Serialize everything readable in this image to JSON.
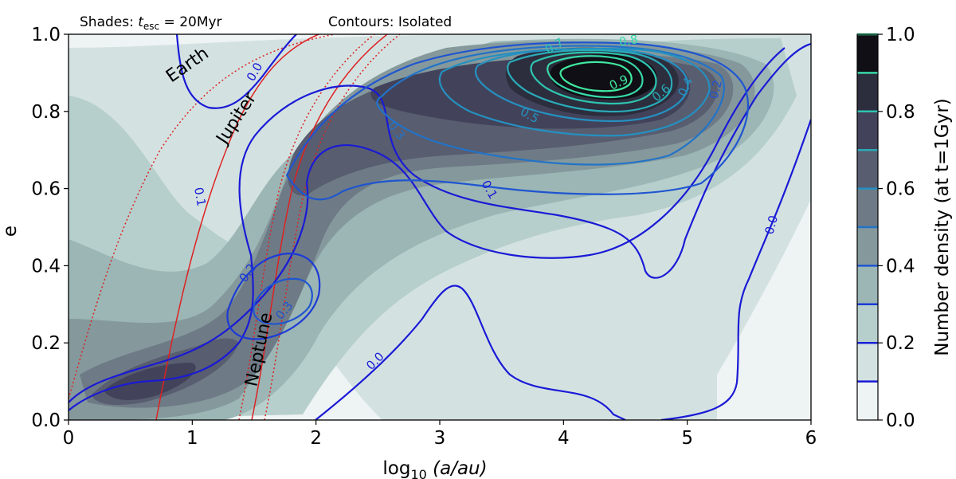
{
  "chart_data": {
    "type": "contour",
    "annotations": {
      "shades": "Shades: ",
      "shades_sym": "t",
      "shades_sub": "esc",
      "shades_val": " = 20Myr",
      "contours": "Contours: Isolated"
    },
    "xlabel": "log",
    "xlabel_sub": "10",
    "xlabel_rest": " (a/au)",
    "ylabel": "e",
    "xlim": [
      0,
      6
    ],
    "ylim": [
      0,
      1
    ],
    "xticks": [
      "0",
      "1",
      "2",
      "3",
      "4",
      "5",
      "6"
    ],
    "yticks": [
      "0.0",
      "0.2",
      "0.4",
      "0.6",
      "0.8",
      "1.0"
    ],
    "colorbar": {
      "label": "Number density (at t=1Gyr)",
      "ticks": [
        "0.0",
        "0.2",
        "0.4",
        "0.6",
        "0.8",
        "1.0"
      ],
      "shade_colors": [
        "#eef3f3",
        "#d3e2e1",
        "#b7cfcc",
        "#9bb6b4",
        "#85999c",
        "#6e7b86",
        "#585d70",
        "#42435a",
        "#2c2d3d",
        "#0f0f15"
      ],
      "line_levels": [
        0.1,
        0.2,
        0.3,
        0.4,
        0.5,
        0.6,
        0.7,
        0.8,
        0.9,
        1.0
      ],
      "line_colors": [
        "#1a1ad6",
        "#1a22d6",
        "#1c3ad6",
        "#1f55d0",
        "#2273c8",
        "#2590c0",
        "#2aaab8",
        "#2ec4b0",
        "#38d8a8",
        "#40e8a0"
      ]
    },
    "planets": [
      {
        "name": "Earth",
        "x": 0.0
      },
      {
        "name": "Jupiter",
        "x": 0.72
      },
      {
        "name": "Neptune",
        "x": 1.48
      }
    ],
    "contour_labels": [
      "0.0",
      "0.0",
      "0.0",
      "0.0",
      "0.1",
      "0.1",
      "0.2",
      "0.3",
      "0.3",
      "0.2",
      "0.3",
      "0.4",
      "0.5",
      "0.6",
      "0.7",
      "0.8",
      "0.9"
    ]
  }
}
